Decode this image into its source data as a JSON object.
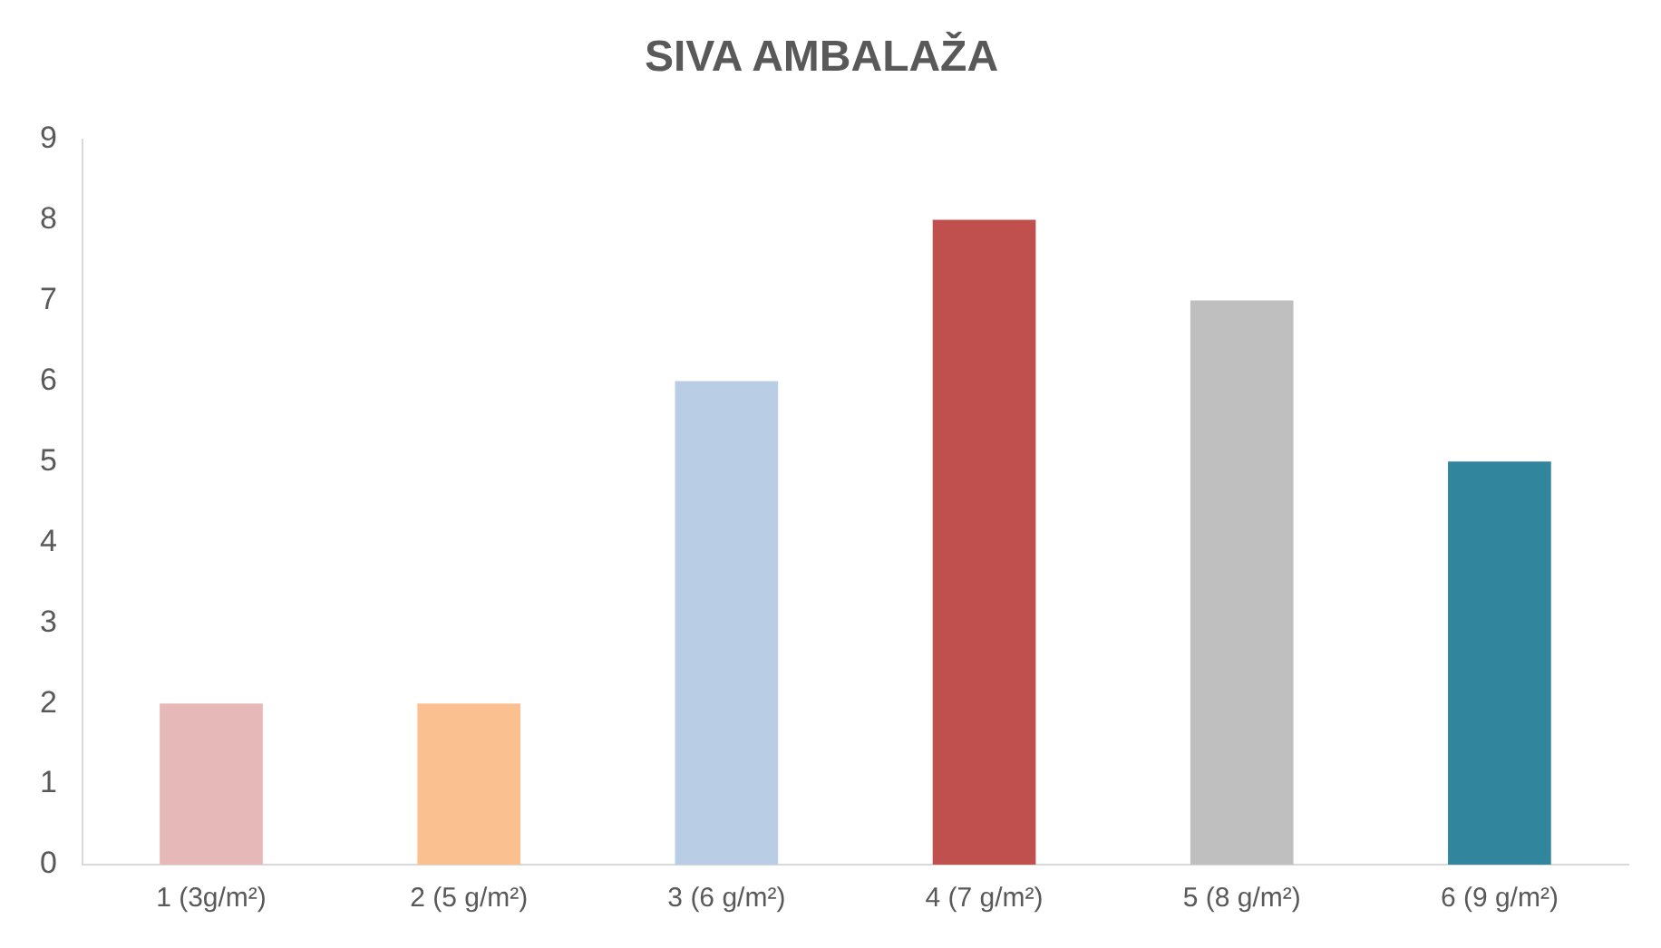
{
  "chart_data": {
    "type": "bar",
    "title": "SIVA AMBALAŽA",
    "categories": [
      "1 (3g/m²)",
      "2 (5 g/m²)",
      "3 (6 g/m²)",
      "4 (7 g/m²)",
      "5 (8 g/m²)",
      "6 (9 g/m²)"
    ],
    "values": [
      2,
      2,
      6,
      8,
      7,
      5
    ],
    "colors": [
      "#e6b9b8",
      "#fac090",
      "#b9cde5",
      "#c0504d",
      "#bfbfbf",
      "#31859c"
    ],
    "ylim": [
      0,
      9
    ],
    "yticks": [
      0,
      1,
      2,
      3,
      4,
      5,
      6,
      7,
      8,
      9
    ],
    "grid": false,
    "legend": false
  }
}
